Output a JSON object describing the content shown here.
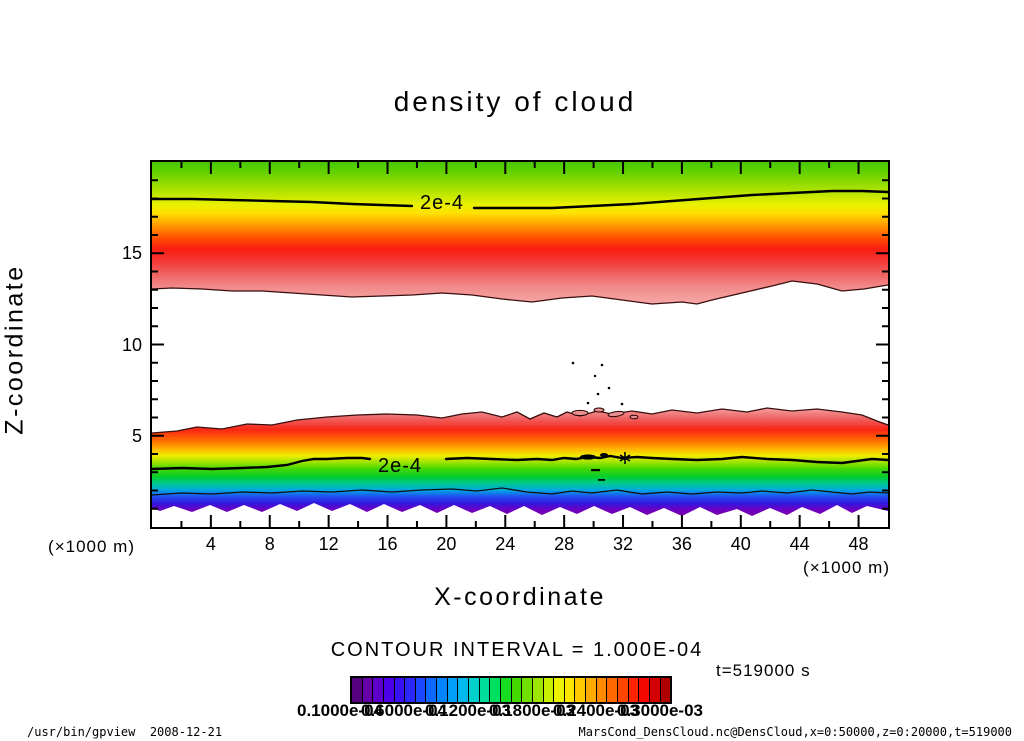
{
  "title": "density of cloud",
  "contour_label": "2e-4",
  "axes": {
    "x_label": "X-coordinate",
    "y_label": "Z-coordinate",
    "x_unit_left": "(×1000 m)",
    "x_unit_right": "(×1000 m)",
    "x_tick_labels": [
      "4",
      "8",
      "12",
      "16",
      "20",
      "24",
      "28",
      "32",
      "36",
      "40",
      "44",
      "48"
    ],
    "y_tick_labels": [
      "5",
      "10",
      "15"
    ]
  },
  "legend": {
    "contour_interval_text": "CONTOUR INTERVAL = 1.000E-04",
    "time_text": "t=519000 s",
    "colorbar_labels": [
      "0.1000e-04",
      "0.6000e-04",
      "0.1200e-03",
      "0.1800e-03",
      "0.2400e-03",
      "0.3000e-03"
    ]
  },
  "footer": {
    "left": "/usr/bin/gpview  2008-12-21",
    "right": "MarsCond_DensCloud.nc@DensCloud,x=0:50000,z=0:20000,t=519000"
  },
  "chart_data": {
    "type": "heatmap",
    "subtype": "filled contour (tone shading + line contours) of cloud density in x-z plane",
    "title": "density of cloud",
    "xlabel": "X-coordinate (×1000 m)",
    "ylabel": "Z-coordinate (×1000 m)",
    "xlim": [
      0,
      50
    ],
    "ylim": [
      0,
      20
    ],
    "x_ticks": [
      4,
      8,
      12,
      16,
      20,
      24,
      28,
      32,
      36,
      40,
      44,
      48
    ],
    "x_minor_tick_step": 2,
    "y_ticks": [
      5,
      10,
      15
    ],
    "y_minor_tick_step": 1,
    "grid": false,
    "contour_interval": 0.0001,
    "labeled_contour_value": 0.0002,
    "time_seconds": 519000,
    "colorbar": {
      "orientation": "horizontal",
      "min": 1e-05,
      "max": 0.0003,
      "tick_labels": [
        "0.1000e-04",
        "0.6000e-04",
        "0.1200e-03",
        "0.1800e-03",
        "0.2400e-03",
        "0.3000e-03"
      ],
      "colors": [
        "#55007f",
        "#6600a8",
        "#5d00cc",
        "#4b00e8",
        "#3a10f4",
        "#2a28fa",
        "#1b48ff",
        "#0d68ff",
        "#0084ff",
        "#00a0fa",
        "#00baee",
        "#00d0cc",
        "#00dc9a",
        "#00e060",
        "#18dc20",
        "#44da00",
        "#70e000",
        "#9ce600",
        "#c8ee00",
        "#eef200",
        "#ffe600",
        "#ffc800",
        "#ffaa00",
        "#ff8a00",
        "#ff6800",
        "#ff4600",
        "#ff2400",
        "#f50800",
        "#d40000",
        "#b00000"
      ]
    },
    "layers": [
      {
        "name": "upper cloud layer",
        "z_bottom_approx": 12.7,
        "z_top": 20,
        "contour_2e4_at_z_approx": 17.8,
        "peak_density_approx": 0.0003,
        "peak_z_approx": 14.5,
        "note": "green at top of frame grading through yellow/orange to red, fading to pale pink at wavy lower boundary"
      },
      {
        "name": "lower cloud layer",
        "z_bottom_approx": 0.8,
        "z_top_approx": 5.3,
        "contour_2e4_at_z_approx": 3.4,
        "peak_density_approx": 0.0003,
        "peak_z_approx": 4.6,
        "note": "pale pink top boundary, red/orange/yellow above 2e-4 contour, green/blue/purple below, jagged purple base"
      },
      {
        "name": "turbulent fragments",
        "x_range_approx": [
          28,
          33
        ],
        "z_range_approx": [
          4.5,
          7.5
        ],
        "note": "small broken contour specks and blobs above the lower layer near x=30"
      }
    ],
    "upper_gradient_stops": [
      {
        "offset": 0,
        "color": "#46c800"
      },
      {
        "offset": 0.08,
        "color": "#68d200"
      },
      {
        "offset": 0.16,
        "color": "#98dd00"
      },
      {
        "offset": 0.24,
        "color": "#c6e800"
      },
      {
        "offset": 0.3,
        "color": "#eaf000"
      },
      {
        "offset": 0.36,
        "color": "#ffe200"
      },
      {
        "offset": 0.42,
        "color": "#ffb000"
      },
      {
        "offset": 0.48,
        "color": "#ff7e00"
      },
      {
        "offset": 0.54,
        "color": "#ff4c00"
      },
      {
        "offset": 0.61,
        "color": "#fa1e10"
      },
      {
        "offset": 0.69,
        "color": "#f43434"
      },
      {
        "offset": 0.78,
        "color": "#f05e5e"
      },
      {
        "offset": 0.88,
        "color": "#f28a8a"
      },
      {
        "offset": 1,
        "color": "#f5a8a8"
      }
    ],
    "lower_gradient_stops": [
      {
        "offset": 0,
        "color": "#f2a2a2"
      },
      {
        "offset": 0.1,
        "color": "#ef6060"
      },
      {
        "offset": 0.2,
        "color": "#fa2616"
      },
      {
        "offset": 0.3,
        "color": "#ff6a00"
      },
      {
        "offset": 0.38,
        "color": "#ffb400"
      },
      {
        "offset": 0.44,
        "color": "#f2ec00"
      },
      {
        "offset": 0.5,
        "color": "#a2e400"
      },
      {
        "offset": 0.56,
        "color": "#48d800"
      },
      {
        "offset": 0.64,
        "color": "#00cc32"
      },
      {
        "offset": 0.7,
        "color": "#00c892"
      },
      {
        "offset": 0.76,
        "color": "#00a8e2"
      },
      {
        "offset": 0.82,
        "color": "#2050f0"
      },
      {
        "offset": 0.88,
        "color": "#3018e0"
      },
      {
        "offset": 0.94,
        "color": "#6a00c2"
      },
      {
        "offset": 1,
        "color": "#7c00a8"
      }
    ]
  },
  "colors": {
    "frame": "#000000",
    "contour_line": "#000000",
    "boundary_line": "#3a0e0e",
    "text": "#000000",
    "background": "#ffffff"
  }
}
